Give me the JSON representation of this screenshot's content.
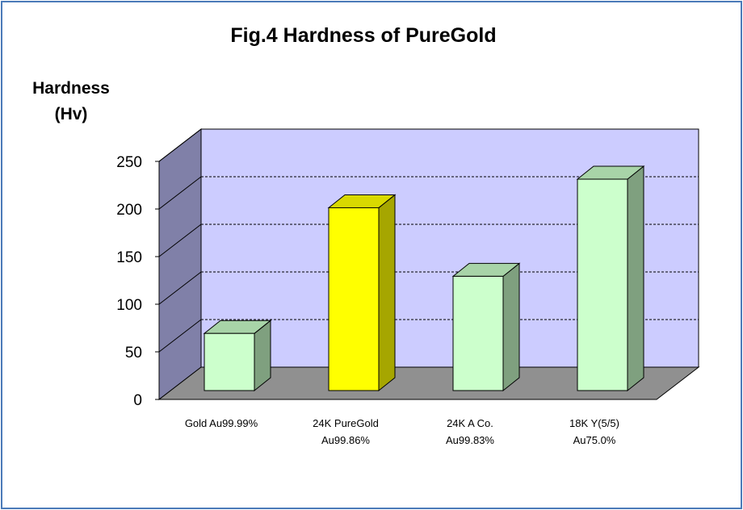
{
  "chart_data": {
    "type": "bar",
    "title": "Fig.4 Hardness of PureGold",
    "ylabel_lines": [
      "Hardness",
      "(Hv)"
    ],
    "xlabel": "",
    "ylim": [
      0,
      250
    ],
    "yticks": [
      "0",
      "50",
      "100",
      "150",
      "200",
      "250"
    ],
    "grid": true,
    "categories": [
      [
        "Gold Au99.99%"
      ],
      [
        "24K PureGold",
        "Au99.86%"
      ],
      [
        "24K A Co.",
        "Au99.83%"
      ],
      [
        "18K Y(5/5)",
        "Au75.0%"
      ]
    ],
    "values": [
      60,
      192,
      120,
      222
    ],
    "colors": {
      "bar_front": [
        "#ccffcc",
        "#ffff00",
        "#ccffcc",
        "#ccffcc"
      ],
      "bar_side": [
        "#7fa07f",
        "#a6a600",
        "#7fa07f",
        "#7fa07f"
      ],
      "bar_top": [
        "#a8d4a8",
        "#d9d900",
        "#a8d4a8",
        "#a8d4a8"
      ],
      "back_wall": "#ccccff",
      "side_wall": "#8080a8",
      "floor": "#909090"
    }
  }
}
